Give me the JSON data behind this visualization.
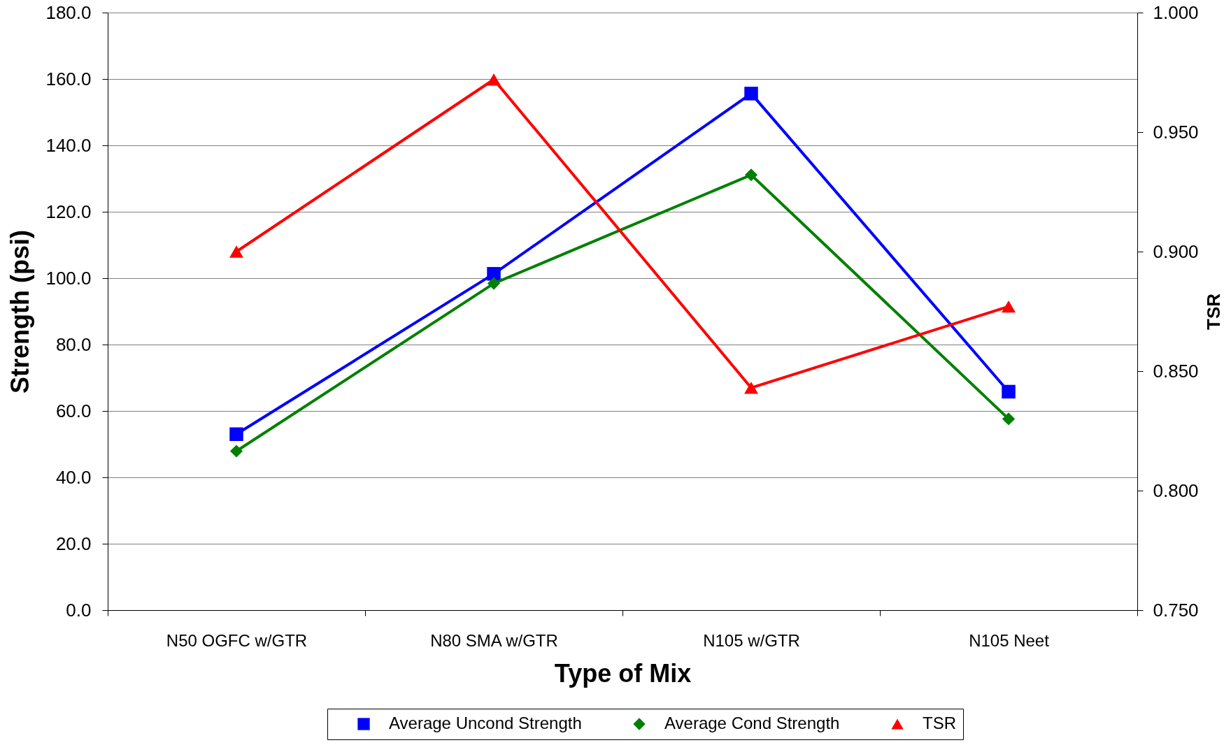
{
  "chart_data": {
    "type": "line",
    "xlabel": "Type of Mix",
    "ylabel": "Strength (psi)",
    "y2label": "TSR",
    "categories": [
      "N50 OGFC w/GTR",
      "N80 SMA w/GTR",
      "N105 w/GTR",
      "N105 Neet"
    ],
    "series": [
      {
        "name": "Average Uncond Strength",
        "color": "#0000ff",
        "marker": "square",
        "values": [
          53.0,
          101.3,
          155.6,
          65.8
        ]
      },
      {
        "name": "Average Cond Strength",
        "color": "#008000",
        "marker": "diamond",
        "values": [
          47.9,
          98.4,
          131.1,
          57.6
        ]
      },
      {
        "name": "TSR",
        "color": "#ff0000",
        "marker": "triangle",
        "axis": "y2",
        "values": [
          0.9,
          0.972,
          0.843,
          0.877
        ]
      }
    ],
    "ylim": [
      0,
      180
    ],
    "yticks": [
      {
        "value": 0,
        "label": "0.0"
      },
      {
        "value": 20,
        "label": "20.0"
      },
      {
        "value": 40,
        "label": "40.0"
      },
      {
        "value": 60,
        "label": "60.0"
      },
      {
        "value": 80,
        "label": "80.0"
      },
      {
        "value": 100,
        "label": "100.0"
      },
      {
        "value": 120,
        "label": "120.0"
      },
      {
        "value": 140,
        "label": "140.0"
      },
      {
        "value": 160,
        "label": "160.0"
      },
      {
        "value": 180,
        "label": "180.0"
      }
    ],
    "y2lim": [
      0.75,
      1.0
    ],
    "y2ticks": [
      {
        "value": 0.75,
        "label": "0.750"
      },
      {
        "value": 0.8,
        "label": "0.800"
      },
      {
        "value": 0.85,
        "label": "0.850"
      },
      {
        "value": 0.9,
        "label": "0.900"
      },
      {
        "value": 0.95,
        "label": "0.950"
      },
      {
        "value": 1.0,
        "label": "1.000"
      }
    ],
    "grid": "y",
    "legend": "bottom",
    "line_style": "solid"
  }
}
